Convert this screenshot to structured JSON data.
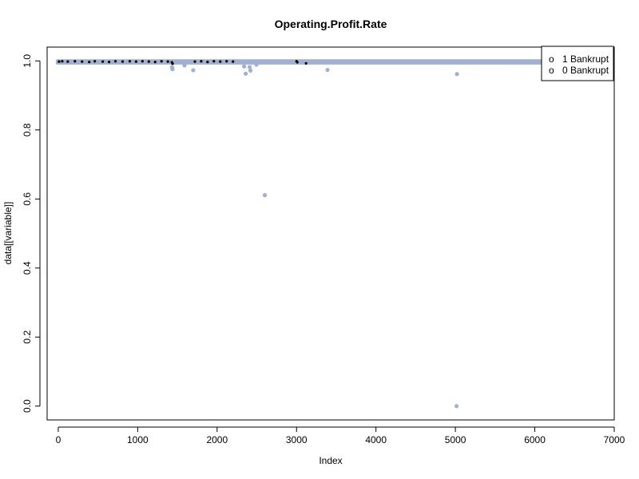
{
  "chart_data": {
    "type": "scatter",
    "title": "Operating.Profit.Rate",
    "xlabel": "Index",
    "ylabel": "data[[variable]]",
    "xlim": [
      -140,
      7000
    ],
    "ylim": [
      -0.04,
      1.04
    ],
    "x_ticks": [
      "0",
      "1000",
      "2000",
      "3000",
      "4000",
      "5000",
      "6000",
      "7000"
    ],
    "y_ticks": [
      "0.0",
      "0.2",
      "0.4",
      "0.6",
      "0.8",
      "1.0"
    ],
    "grid": false,
    "legend": {
      "position": "top-right",
      "entries": [
        {
          "symbol": "o",
          "label": "1 Bankrupt",
          "color": "#000000"
        },
        {
          "symbol": "o",
          "label": "0 Bankrupt",
          "color": "#9fb0d0"
        }
      ]
    },
    "colors": {
      "bankrupt_1": "#000000",
      "bankrupt_0": "#9fb0d0"
    },
    "series": [
      {
        "name": "0 Bankrupt",
        "points": [
          [
            1432,
            0.982
          ],
          [
            1438,
            0.976
          ],
          [
            1590,
            0.987
          ],
          [
            1700,
            0.973
          ],
          [
            2340,
            0.984
          ],
          [
            2360,
            0.963
          ],
          [
            2410,
            0.982
          ],
          [
            2420,
            0.972
          ],
          [
            2495,
            0.989
          ],
          [
            2601,
            0.611
          ],
          [
            3390,
            0.974
          ],
          [
            5020,
            0.962
          ],
          [
            5015,
            0.0
          ]
        ]
      },
      {
        "name": "1 Bankrupt",
        "points": [
          [
            10,
            0.998
          ],
          [
            50,
            0.999
          ],
          [
            120,
            0.998
          ],
          [
            210,
            0.999
          ],
          [
            300,
            0.998
          ],
          [
            390,
            0.997
          ],
          [
            460,
            0.999
          ],
          [
            560,
            0.998
          ],
          [
            640,
            0.997
          ],
          [
            720,
            0.999
          ],
          [
            810,
            0.998
          ],
          [
            900,
            0.999
          ],
          [
            980,
            0.998
          ],
          [
            1060,
            0.999
          ],
          [
            1140,
            0.998
          ],
          [
            1220,
            0.997
          ],
          [
            1300,
            0.999
          ],
          [
            1380,
            0.998
          ],
          [
            1430,
            0.996
          ],
          [
            1440,
            0.992
          ],
          [
            1720,
            0.998
          ],
          [
            1800,
            0.999
          ],
          [
            1880,
            0.997
          ],
          [
            1960,
            0.999
          ],
          [
            2040,
            0.998
          ],
          [
            2120,
            0.999
          ],
          [
            2200,
            0.998
          ],
          [
            3000,
            0.999
          ],
          [
            3010,
            0.996
          ],
          [
            3120,
            0.993
          ]
        ]
      }
    ],
    "dense_band": [
      {
        "series": "0 Bankrupt",
        "x_from": 0,
        "x_to": 6819,
        "y_min": 0.994,
        "y_max": 1.0
      }
    ]
  }
}
